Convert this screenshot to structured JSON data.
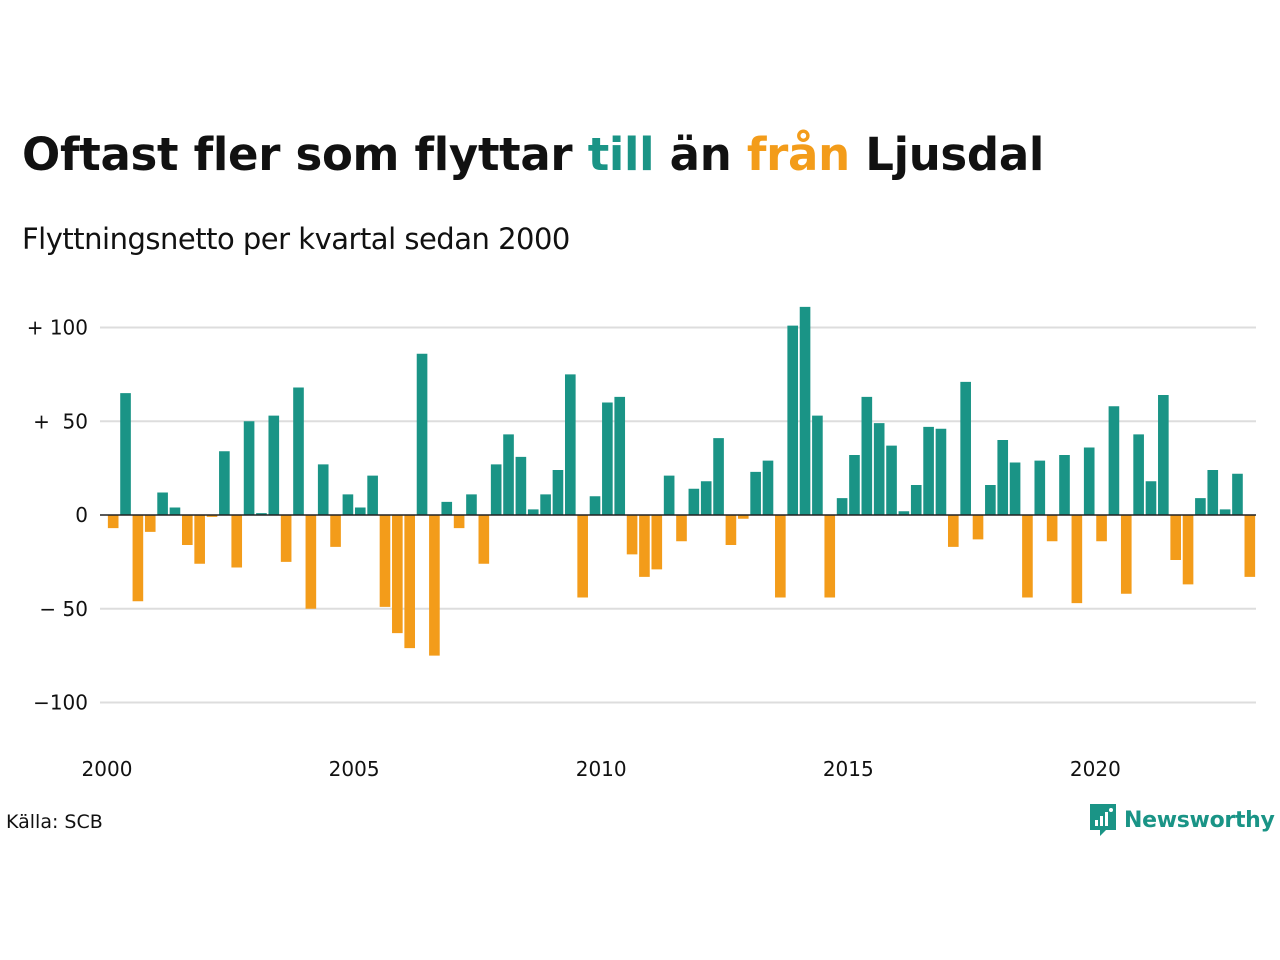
{
  "title": {
    "part1": "Oftast fler som flyttar ",
    "highlight_in": "till",
    "part2": " än ",
    "highlight_out": "från",
    "part3": " Ljusdal"
  },
  "subtitle": "Flyttningsnetto per kvartal sedan 2000",
  "source": "Källa: SCB",
  "brand": {
    "name": "Newsworthy",
    "icon": "newsworthy-logo-icon"
  },
  "colors": {
    "positive": "#1a9486",
    "negative": "#f39c1a",
    "grid": "#dddddd",
    "text": "#111111"
  },
  "chart_data": {
    "type": "bar",
    "title": "Oftast fler som flyttar till än från Ljusdal",
    "subtitle": "Flyttningsnetto per kvartal sedan 2000",
    "x_start": "2000-Q1",
    "quarters_per_year": 4,
    "xticks": [
      2000,
      2005,
      2010,
      2015,
      2020
    ],
    "xtick_labels": [
      "2000",
      "2005",
      "2010",
      "2015",
      "2020"
    ],
    "yticks": [
      100,
      50,
      0,
      -50,
      -100
    ],
    "ytick_labels": [
      "+ 100",
      "+  50",
      "0",
      "− 50",
      "−100"
    ],
    "ylim": [
      -120,
      115
    ],
    "grid": true,
    "values": [
      -7,
      65,
      -46,
      -9,
      12,
      4,
      -16,
      -26,
      -1,
      34,
      -28,
      50,
      1,
      53,
      -25,
      68,
      -50,
      27,
      -17,
      11,
      4,
      21,
      -49,
      -63,
      -71,
      86,
      -75,
      7,
      -7,
      11,
      -26,
      27,
      43,
      31,
      3,
      11,
      24,
      75,
      -44,
      10,
      60,
      63,
      -21,
      -33,
      -29,
      21,
      -14,
      14,
      18,
      41,
      -16,
      -2,
      23,
      29,
      -44,
      101,
      111,
      53,
      -44,
      9,
      32,
      63,
      49,
      37,
      2,
      16,
      47,
      46,
      -17,
      71,
      -13,
      16,
      40,
      28,
      -44,
      29,
      -14,
      32,
      -47,
      36,
      -14,
      58,
      -42,
      43,
      18,
      64,
      -24,
      -37,
      9,
      24,
      3,
      22,
      -33
    ]
  }
}
